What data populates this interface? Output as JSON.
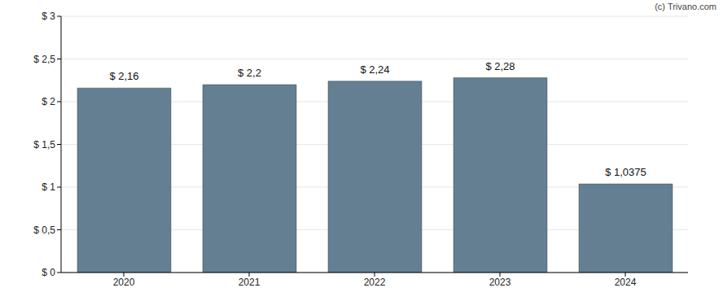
{
  "chart_data": {
    "type": "bar",
    "annotations": [
      "(c) Trivano.com"
    ],
    "categories": [
      "2020",
      "2021",
      "2022",
      "2023",
      "2024"
    ],
    "values": [
      2.16,
      2.2,
      2.24,
      2.28,
      1.0375
    ],
    "value_labels": [
      "$ 2,16",
      "$ 2,2",
      "$ 2,24",
      "$ 2,28",
      "$ 1,0375"
    ],
    "data_labels": true,
    "color": "#647f91",
    "ylim": [
      0,
      3
    ],
    "yticks": [
      {
        "value": 0,
        "label": "$ 0"
      },
      {
        "value": 0.5,
        "label": "$ 0,5"
      },
      {
        "value": 1,
        "label": "$ 1"
      },
      {
        "value": 1.5,
        "label": "$ 1,5"
      },
      {
        "value": 2,
        "label": "$ 2"
      },
      {
        "value": 2.5,
        "label": "$ 2,5"
      },
      {
        "value": 3,
        "label": "$ 3"
      }
    ],
    "grid": true
  }
}
